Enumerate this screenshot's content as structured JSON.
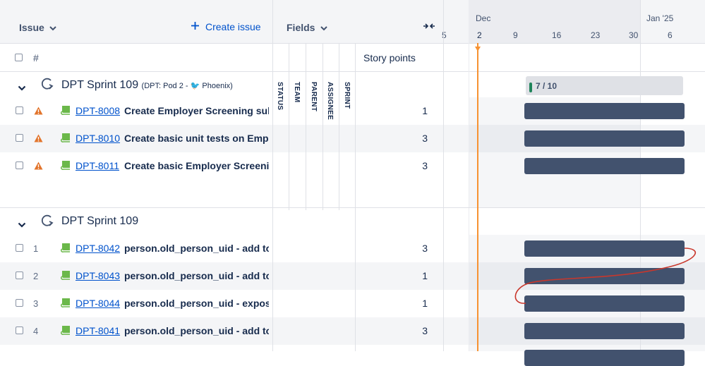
{
  "header": {
    "issue_label": "Issue",
    "create_issue_label": "Create issue",
    "fields_label": "Fields",
    "hash_label": "#",
    "story_points_label": "Story points"
  },
  "timeline": {
    "months": [
      {
        "label": "Dec"
      },
      {
        "label": "Jan '25"
      }
    ],
    "ticks": [
      "5",
      "2",
      "9",
      "16",
      "23",
      "30",
      "6"
    ]
  },
  "field_columns": [
    "STATUS",
    "TEAM",
    "PARENT",
    "ASSIGNEE",
    "SPRINT"
  ],
  "groups": [
    {
      "title": "DPT Sprint 109",
      "subtitle_prefix": "(DPT: Pod 2 - ",
      "subtitle_team": "Phoenix)",
      "progress": "7 / 10",
      "progress_fraction": 0.7,
      "issues": [
        {
          "rank": "",
          "key": "DPT-8008",
          "summary": "Create Employer Screening sub",
          "points": "1"
        },
        {
          "rank": "",
          "key": "DPT-8010",
          "summary": "Create basic unit tests on Empl",
          "points": "3"
        },
        {
          "rank": "",
          "key": "DPT-8011",
          "summary": "Create basic Employer Screeni...",
          "points": "3"
        }
      ]
    },
    {
      "title": "DPT Sprint 109",
      "issues": [
        {
          "rank": "1",
          "key": "DPT-8042",
          "summary": "person.old_person_uid - add to...",
          "points": "3"
        },
        {
          "rank": "2",
          "key": "DPT-8043",
          "summary": "person.old_person_uid - add to...",
          "points": "1"
        },
        {
          "rank": "3",
          "key": "DPT-8044",
          "summary": "person.old_person_uid - expos...",
          "points": "1"
        },
        {
          "rank": "4",
          "key": "DPT-8041",
          "summary": "person.old_person_uid - add to...",
          "points": "3"
        }
      ]
    }
  ],
  "colors": {
    "today_line": "#f79232",
    "bar": "#42526e",
    "dependency": "#c9372c",
    "story_icon": "#6bb84a",
    "priority_icon": "#e2742b",
    "link": "#0052cc"
  },
  "icons": {
    "collapse": "chevron-down-icon",
    "sprint": "sprint-icon",
    "story": "story-icon",
    "priority": "warning-icon",
    "create": "plus-icon",
    "collapse_columns": "collapse-arrows-icon"
  }
}
